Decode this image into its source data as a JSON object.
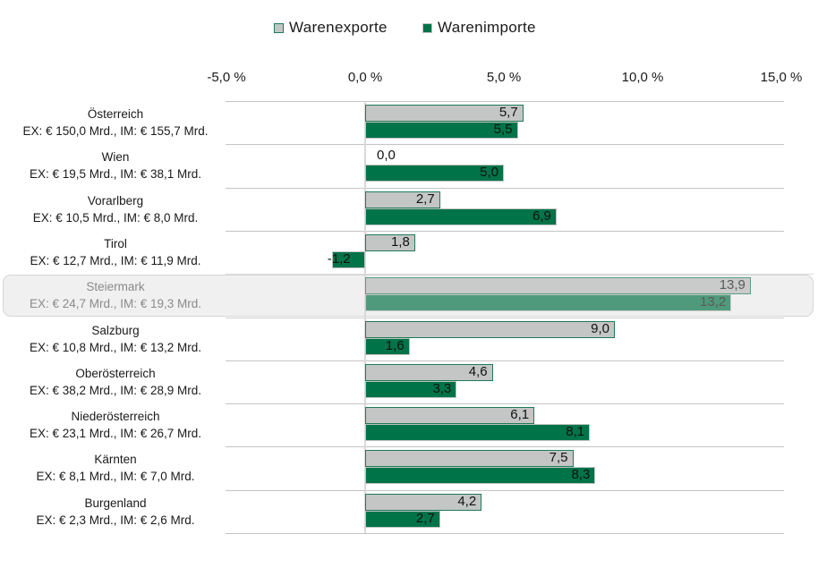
{
  "chart_data": {
    "type": "bar",
    "orientation": "horizontal",
    "title": "",
    "xlabel": "",
    "ylabel": "",
    "xlim": [
      -5,
      15
    ],
    "x_ticks": [
      -5,
      0,
      5,
      10,
      15
    ],
    "x_tick_labels": [
      "-5,0 %",
      "0,0 %",
      "5,0 %",
      "10,0 %",
      "15,0 %"
    ],
    "axis_position": "top",
    "grid": false,
    "legend": {
      "placement": "top-center",
      "entries": [
        "Warenexporte",
        "Warenimporte"
      ]
    },
    "highlighted_category": "Steiermark",
    "categories": [
      {
        "name": "Österreich",
        "detail": "EX: € 150,0 Mrd., IM: € 155,7 Mrd."
      },
      {
        "name": "Wien",
        "detail": "EX: € 19,5 Mrd., IM: € 38,1 Mrd."
      },
      {
        "name": "Vorarlberg",
        "detail": "EX: € 10,5 Mrd., IM: € 8,0 Mrd."
      },
      {
        "name": "Tirol",
        "detail": "EX: € 12,7 Mrd., IM: € 11,9 Mrd."
      },
      {
        "name": "Steiermark",
        "detail": "EX: € 24,7 Mrd., IM: € 19,3 Mrd."
      },
      {
        "name": "Salzburg",
        "detail": "EX: € 10,8 Mrd., IM: € 13,2 Mrd."
      },
      {
        "name": "Oberösterreich",
        "detail": "EX: € 38,2 Mrd., IM: € 28,9 Mrd."
      },
      {
        "name": "Niederösterreich",
        "detail": "EX: € 23,1 Mrd., IM: € 26,7 Mrd."
      },
      {
        "name": "Kärnten",
        "detail": "EX: € 8,1 Mrd., IM: € 7,0 Mrd."
      },
      {
        "name": "Burgenland",
        "detail": "EX: € 2,3 Mrd., IM: € 2,6 Mrd."
      }
    ],
    "series": [
      {
        "name": "Warenexporte",
        "color": "#c4c6c6",
        "border": "#1f7a55",
        "values": [
          5.7,
          0.0,
          2.7,
          1.8,
          13.9,
          9.0,
          4.6,
          6.1,
          7.5,
          4.2
        ],
        "labels": [
          "5,7",
          "0,0",
          "2,7",
          "1,8",
          "13,9",
          "9,0",
          "4,6",
          "6,1",
          "7,5",
          "4,2"
        ]
      },
      {
        "name": "Warenimporte",
        "color": "#007349",
        "border": "#bfc3c2",
        "values": [
          5.5,
          5.0,
          6.9,
          -1.2,
          13.2,
          1.6,
          3.3,
          8.1,
          8.3,
          2.7
        ],
        "labels": [
          "5,5",
          "5,0",
          "6,9",
          "-1,2",
          "13,2",
          "1,6",
          "3,3",
          "8,1",
          "8,3",
          "2,7"
        ]
      }
    ]
  }
}
